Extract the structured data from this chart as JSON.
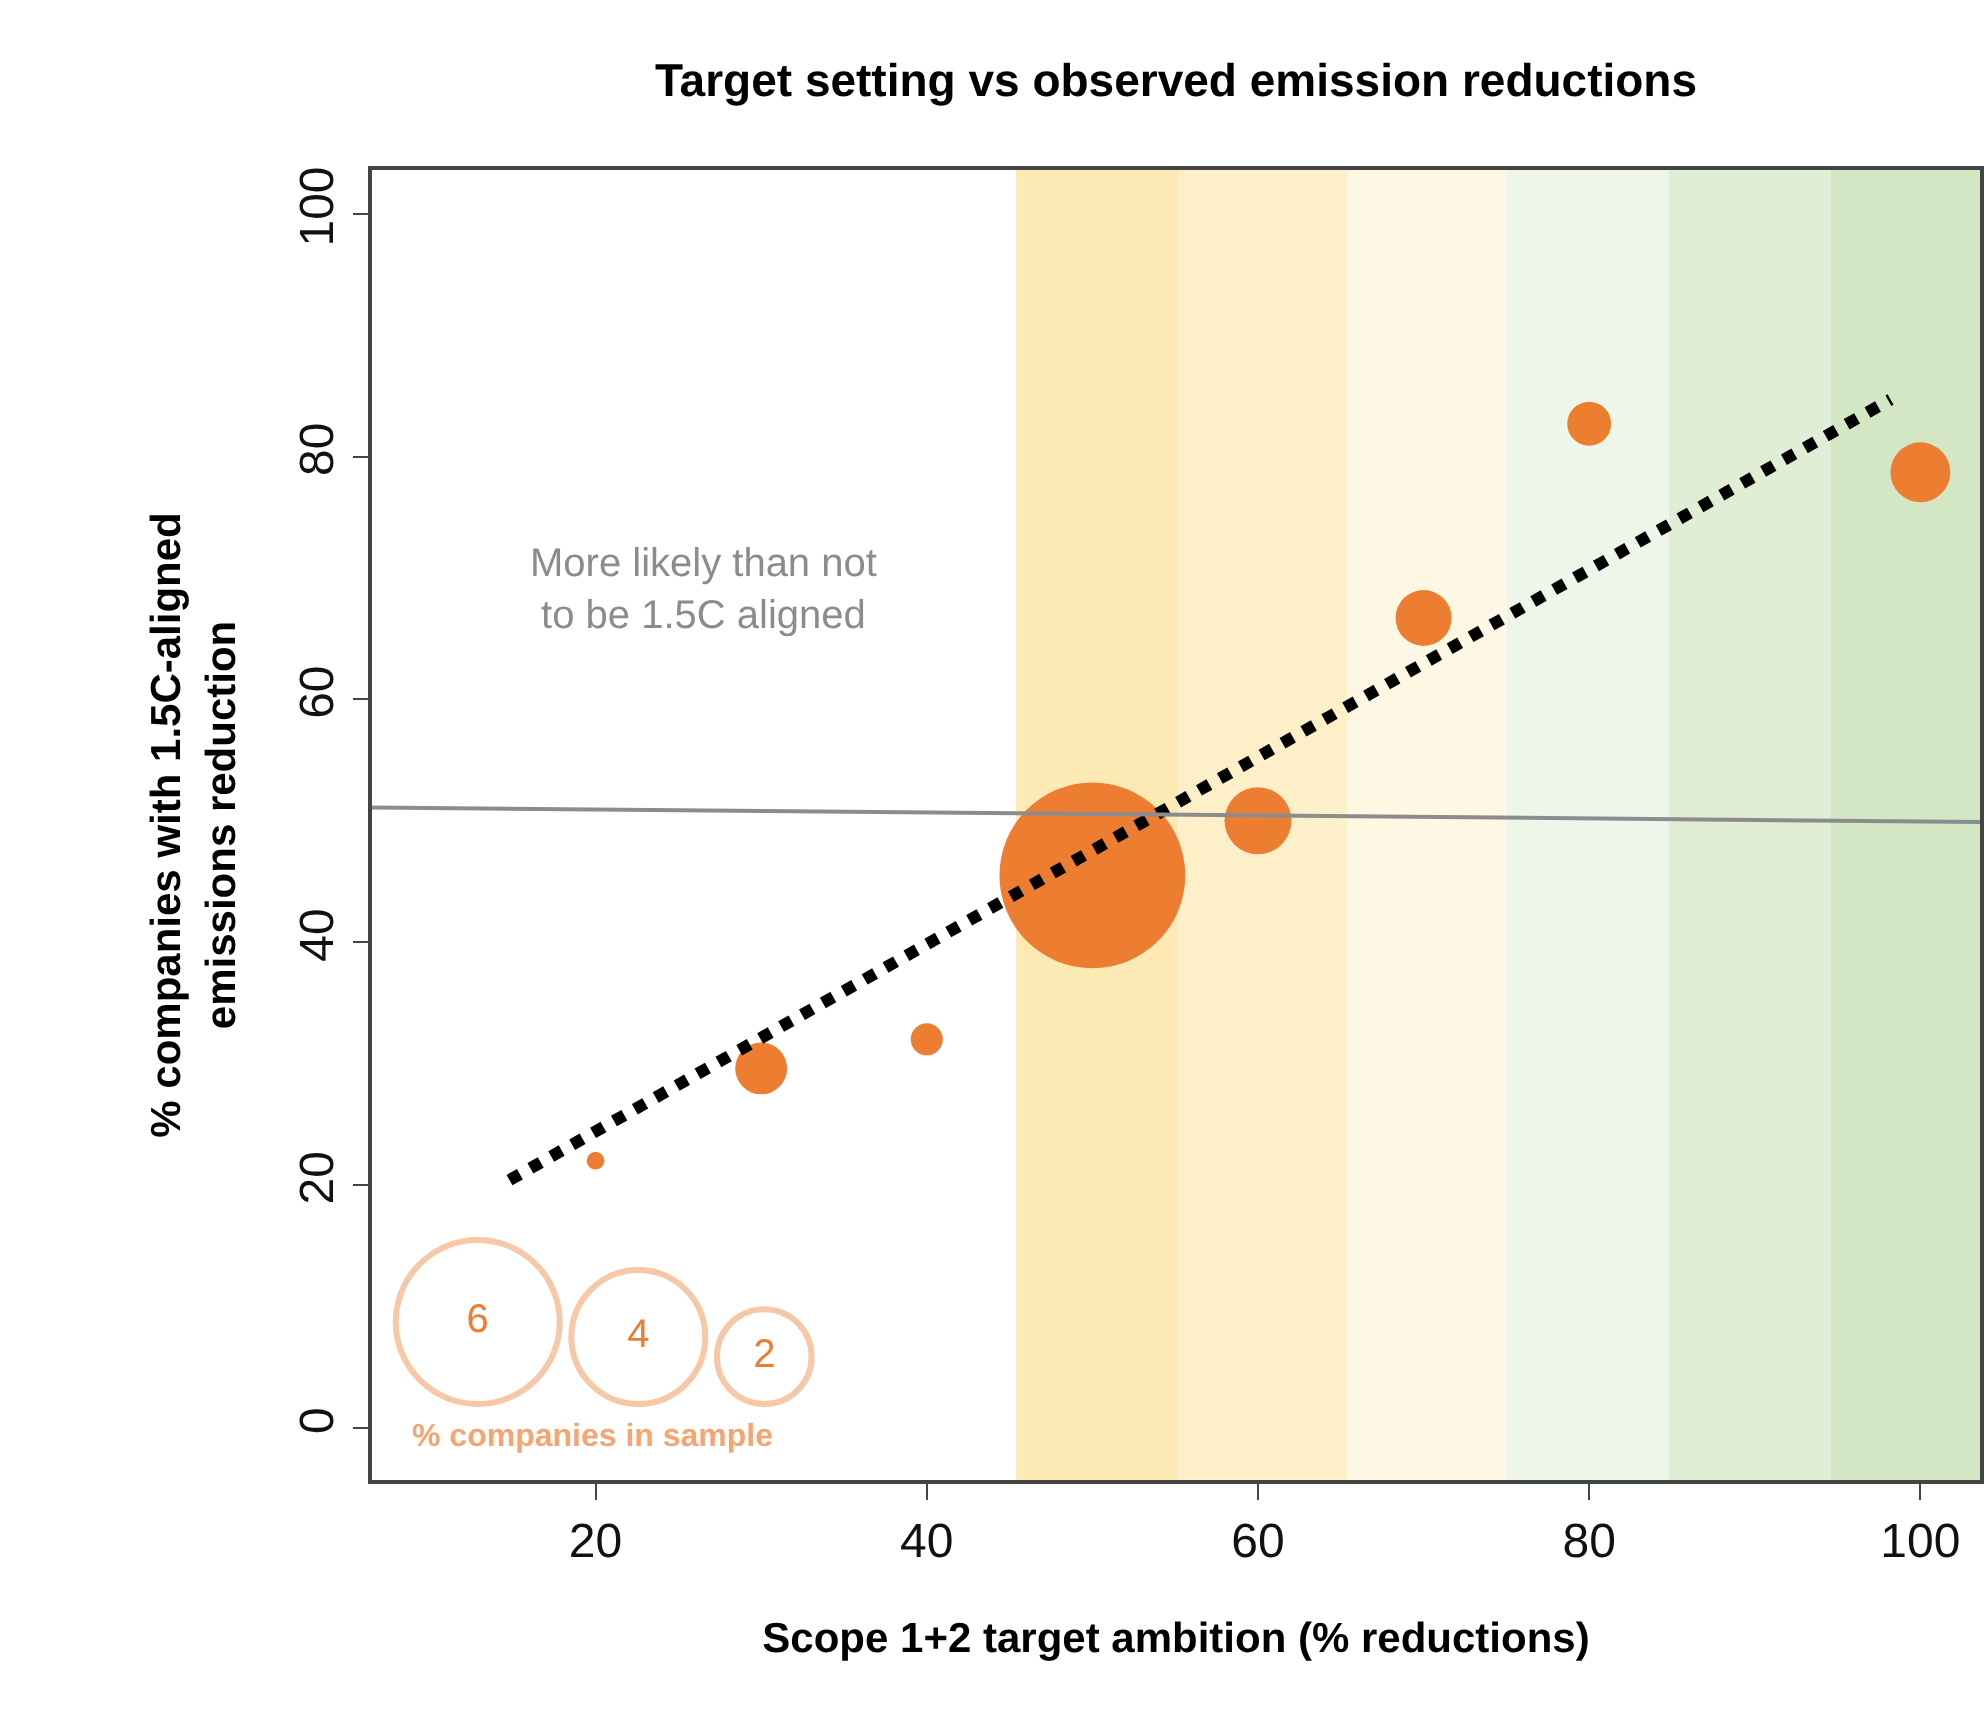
{
  "chart_data": {
    "type": "bubble",
    "title": "Target setting vs observed emission reductions",
    "xlabel": "Scope 1+2 target ambition (% reductions)",
    "ylabel": "% companies with 1.5C-aligned\nemissions reduction",
    "xlim": [
      6.5,
      103.6
    ],
    "ylim": [
      -4.3,
      103.6
    ],
    "xticks": [
      20,
      40,
      60,
      80,
      100
    ],
    "yticks": [
      0,
      20,
      40,
      60,
      80,
      100
    ],
    "grid": false,
    "series": [
      {
        "color": "#ed7d31",
        "x": [
          20,
          30,
          40,
          50,
          60,
          70,
          80,
          100
        ],
        "values": [
          22,
          29.6,
          32,
          45.5,
          50,
          66.7,
          82.7,
          78.7
        ],
        "sizes": [
          0.07,
          0.6,
          0.23,
          7.7,
          1.0,
          0.7,
          0.43,
          0.8
        ]
      },
      {
        "type": "line",
        "color": "#000000",
        "line_style": "dotted",
        "x": [
          14.8,
          98.2
        ],
        "values": [
          20.4,
          84.7
        ]
      },
      {
        "type": "line",
        "color": "#8c8c8c",
        "line_style": "solid",
        "x": [
          6.5,
          103.6
        ],
        "values": [
          51.1,
          49.9
        ]
      }
    ],
    "bands": [
      {
        "axis": "x",
        "from": 45.4,
        "to": 55.2,
        "color": "#fde9b3"
      },
      {
        "axis": "x",
        "from": 55.2,
        "to": 65.4,
        "color": "#fdf0c9"
      },
      {
        "axis": "x",
        "from": 65.4,
        "to": 75,
        "color": "#fef7e3"
      },
      {
        "axis": "x",
        "from": 75,
        "to": 84.8,
        "color": "#eef6ea"
      },
      {
        "axis": "x",
        "from": 84.8,
        "to": 94.6,
        "color": "#e0eed6"
      },
      {
        "axis": "x",
        "from": 94.6,
        "to": 103.6,
        "color": "#d3e7c5"
      }
    ],
    "annotations": [
      "More likely than not\nto be 1.5C aligned"
    ],
    "legend_title": "% companies in sample",
    "size_legend": [
      6,
      4,
      2
    ]
  }
}
